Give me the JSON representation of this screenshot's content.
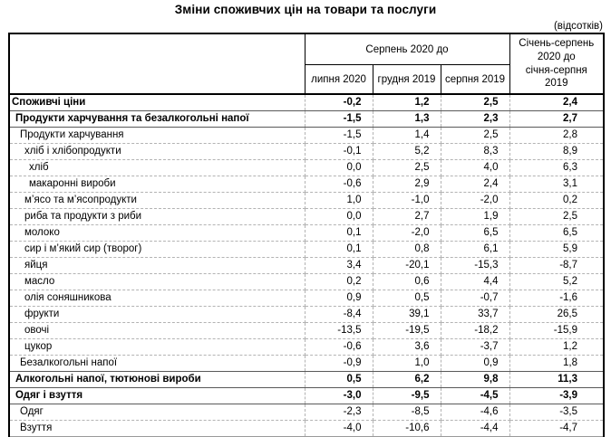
{
  "title": "Зміни споживчих цін на товари та послуги",
  "unit_note": "(відсотків)",
  "table": {
    "header": {
      "group_col": "Серпень 2020 до",
      "sub_cols": [
        "липня 2020",
        "грудня 2019",
        "серпня 2019"
      ],
      "period_col": "Січень-серпень\n2020 до\nсічня-серпня\n2019"
    },
    "rows": [
      {
        "label": "Споживчі ціни",
        "indent": 0,
        "bold": true,
        "values": [
          "-0,2",
          "1,2",
          "2,5",
          "2,4"
        ]
      },
      {
        "label": "Продукти харчування та безалкогольні напої",
        "indent": 1,
        "bold": true,
        "values": [
          "-1,5",
          "1,3",
          "2,3",
          "2,7"
        ]
      },
      {
        "label": "Продукти харчування",
        "indent": 2,
        "bold": false,
        "values": [
          "-1,5",
          "1,4",
          "2,5",
          "2,8"
        ]
      },
      {
        "label": "хліб і хлібопродукти",
        "indent": 3,
        "bold": false,
        "values": [
          "-0,1",
          "5,2",
          "8,3",
          "8,9"
        ]
      },
      {
        "label": "хліб",
        "indent": 4,
        "bold": false,
        "values": [
          "0,0",
          "2,5",
          "4,0",
          "6,3"
        ]
      },
      {
        "label": "макаронні вироби",
        "indent": 4,
        "bold": false,
        "values": [
          "-0,6",
          "2,9",
          "2,4",
          "3,1"
        ]
      },
      {
        "label": "м’ясо та м’ясопродукти",
        "indent": 3,
        "bold": false,
        "values": [
          "1,0",
          "-1,0",
          "-2,0",
          "0,2"
        ]
      },
      {
        "label": "риба та продукти з риби",
        "indent": 3,
        "bold": false,
        "values": [
          "0,0",
          "2,7",
          "1,9",
          "2,5"
        ]
      },
      {
        "label": "молоко",
        "indent": 3,
        "bold": false,
        "values": [
          "0,1",
          "-2,0",
          "6,5",
          "6,5"
        ]
      },
      {
        "label": "сир і м’який сир (творог)",
        "indent": 3,
        "bold": false,
        "values": [
          "0,1",
          "0,8",
          "6,1",
          "5,9"
        ]
      },
      {
        "label": "яйця",
        "indent": 3,
        "bold": false,
        "values": [
          "3,4",
          "-20,1",
          "-15,3",
          "-8,7"
        ]
      },
      {
        "label": "масло",
        "indent": 3,
        "bold": false,
        "values": [
          "0,2",
          "0,6",
          "4,4",
          "5,2"
        ]
      },
      {
        "label": "олія соняшникова",
        "indent": 3,
        "bold": false,
        "values": [
          "0,9",
          "0,5",
          "-0,7",
          "-1,6"
        ]
      },
      {
        "label": "фрукти",
        "indent": 3,
        "bold": false,
        "values": [
          "-8,4",
          "39,1",
          "33,7",
          "26,5"
        ]
      },
      {
        "label": "овочі",
        "indent": 3,
        "bold": false,
        "values": [
          "-13,5",
          "-19,5",
          "-18,2",
          "-15,9"
        ]
      },
      {
        "label": "цукор",
        "indent": 3,
        "bold": false,
        "values": [
          "-0,6",
          "3,6",
          "-3,7",
          "1,2"
        ]
      },
      {
        "label": "Безалкогольні напої",
        "indent": 2,
        "bold": false,
        "values": [
          "-0,9",
          "1,0",
          "0,9",
          "1,8"
        ]
      },
      {
        "label": "Алкогольні напої, тютюнові вироби",
        "indent": 1,
        "bold": true,
        "values": [
          "0,5",
          "6,2",
          "9,8",
          "11,3"
        ]
      },
      {
        "label": "Одяг і взуття",
        "indent": 1,
        "bold": true,
        "values": [
          "-3,0",
          "-9,5",
          "-4,5",
          "-3,9"
        ]
      },
      {
        "label": "Одяг",
        "indent": 2,
        "bold": false,
        "values": [
          "-2,3",
          "-8,5",
          "-4,6",
          "-3,5"
        ]
      },
      {
        "label": "Взуття",
        "indent": 2,
        "bold": false,
        "values": [
          "-4,0",
          "-10,6",
          "-4,4",
          "-4,7"
        ]
      }
    ]
  }
}
